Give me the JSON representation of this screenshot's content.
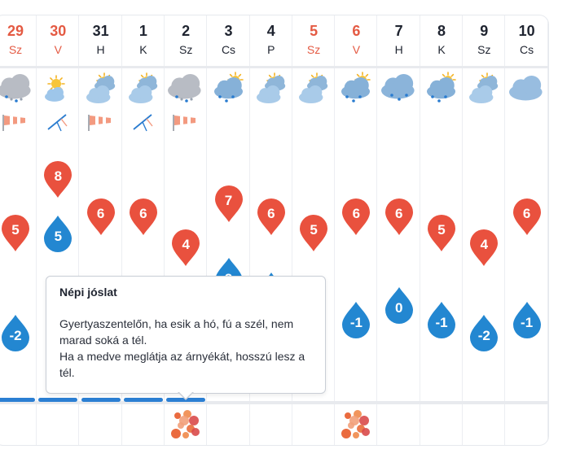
{
  "colors": {
    "warm": "#e9513e",
    "cold": "#2387d1",
    "weekend": "#e45a43",
    "text": "#1f2430"
  },
  "days": [
    {
      "num": "29",
      "name": "Sz",
      "weekend": true,
      "icon": "cloud-rain-snow-icon",
      "wind": "windsock-icon",
      "max": "5",
      "min": "-2",
      "holiday": false
    },
    {
      "num": "30",
      "name": "V",
      "weekend": true,
      "icon": "partly-sunny-icon",
      "wind": "wind-vane-icon",
      "max": "8",
      "min": "5",
      "holiday": false
    },
    {
      "num": "31",
      "name": "H",
      "weekend": false,
      "icon": "sun-cloud-icon",
      "wind": "windsock-icon",
      "max": "6",
      "min": "",
      "holiday": false
    },
    {
      "num": "1",
      "name": "K",
      "weekend": false,
      "icon": "sun-cloud-icon",
      "wind": "wind-vane-icon",
      "max": "6",
      "min": "",
      "holiday": false
    },
    {
      "num": "2",
      "name": "Sz",
      "weekend": false,
      "icon": "cloud-rain-snow-icon",
      "wind": "windsock-icon",
      "max": "4",
      "min": "",
      "holiday": true
    },
    {
      "num": "3",
      "name": "Cs",
      "weekend": false,
      "icon": "sun-rain-cloud-icon",
      "wind": "",
      "max": "7",
      "min": "2",
      "holiday": false
    },
    {
      "num": "4",
      "name": "P",
      "weekend": false,
      "icon": "sun-cloud-icon",
      "wind": "",
      "max": "6",
      "min": "1",
      "holiday": false
    },
    {
      "num": "5",
      "name": "Sz",
      "weekend": true,
      "icon": "sun-cloud-icon",
      "wind": "",
      "max": "5",
      "min": "",
      "holiday": false
    },
    {
      "num": "6",
      "name": "V",
      "weekend": true,
      "icon": "sun-rain-cloud-icon",
      "wind": "",
      "max": "6",
      "min": "-1",
      "holiday": true
    },
    {
      "num": "7",
      "name": "H",
      "weekend": false,
      "icon": "cloud-rain-icon",
      "wind": "",
      "max": "6",
      "min": "0",
      "holiday": false
    },
    {
      "num": "8",
      "name": "K",
      "weekend": false,
      "icon": "sun-rain-cloud-icon",
      "wind": "",
      "max": "5",
      "min": "-1",
      "holiday": false
    },
    {
      "num": "9",
      "name": "Sz",
      "weekend": false,
      "icon": "sun-cloud-icon",
      "wind": "",
      "max": "4",
      "min": "-2",
      "holiday": false
    },
    {
      "num": "10",
      "name": "Cs",
      "weekend": false,
      "icon": "cloud-icon",
      "wind": "",
      "max": "6",
      "min": "-1",
      "holiday": false
    }
  ],
  "tooltip": {
    "title": "Népi jóslat",
    "lines": [
      "Gyertyaszentelőn, ha esik a hó, fú a szél, nem",
      "marad soká a tél.",
      "Ha a medve meglátja az árnyékát, hosszú lesz a",
      "tél."
    ]
  }
}
